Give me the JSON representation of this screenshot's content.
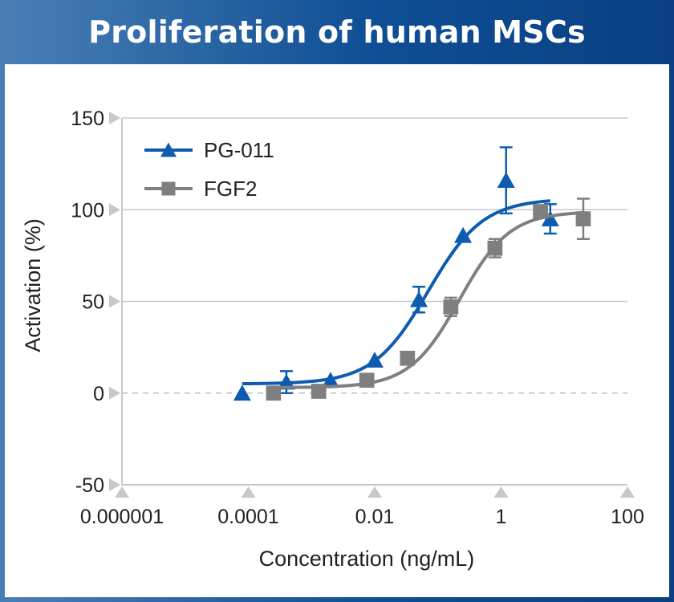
{
  "title": "Proliferation of human MSCs",
  "chart_data": {
    "type": "scatter",
    "xlabel": "Concentration (ng/mL)",
    "ylabel": "Activation (%)",
    "x_scale": "log",
    "xlim": [
      1e-06,
      100
    ],
    "ylim": [
      -50,
      150
    ],
    "x_ticks": [
      1e-06,
      0.0001,
      0.01,
      1,
      100
    ],
    "x_tick_labels": [
      "0.000001",
      "0.0001",
      "0.01",
      "1",
      "100"
    ],
    "y_ticks": [
      -50,
      0,
      50,
      100,
      150
    ],
    "y_tick_labels": [
      "-50",
      "0",
      "50",
      "100",
      "150"
    ],
    "grid": true,
    "legend_position": "top-left",
    "series": [
      {
        "name": "PG-011",
        "marker": "triangle",
        "color": "#0d5cb0",
        "x": [
          8e-05,
          0.0004,
          0.002,
          0.01,
          0.05,
          0.25,
          1.2,
          6.0
        ],
        "y": [
          0,
          6,
          7,
          18,
          51,
          86,
          116,
          95
        ],
        "err": [
          0,
          6,
          0,
          0,
          7,
          0,
          18,
          8
        ],
        "curve": {
          "bottom": 5,
          "top": 106,
          "ec50": 0.07,
          "hill": 1.0,
          "x_range": [
            8e-05,
            6.0
          ]
        }
      },
      {
        "name": "FGF2",
        "marker": "square",
        "color": "#7f7f7f",
        "x": [
          0.00025,
          0.0013,
          0.0075,
          0.033,
          0.16,
          0.8,
          4.2,
          20.0
        ],
        "y": [
          0,
          1,
          7,
          19,
          47,
          79,
          99,
          95
        ],
        "err": [
          0,
          0,
          0,
          0,
          5,
          5,
          0,
          11
        ],
        "curve": {
          "bottom": 3,
          "top": 99,
          "ec50": 0.22,
          "hill": 1.1,
          "x_range": [
            0.00025,
            20.0
          ]
        }
      }
    ]
  }
}
